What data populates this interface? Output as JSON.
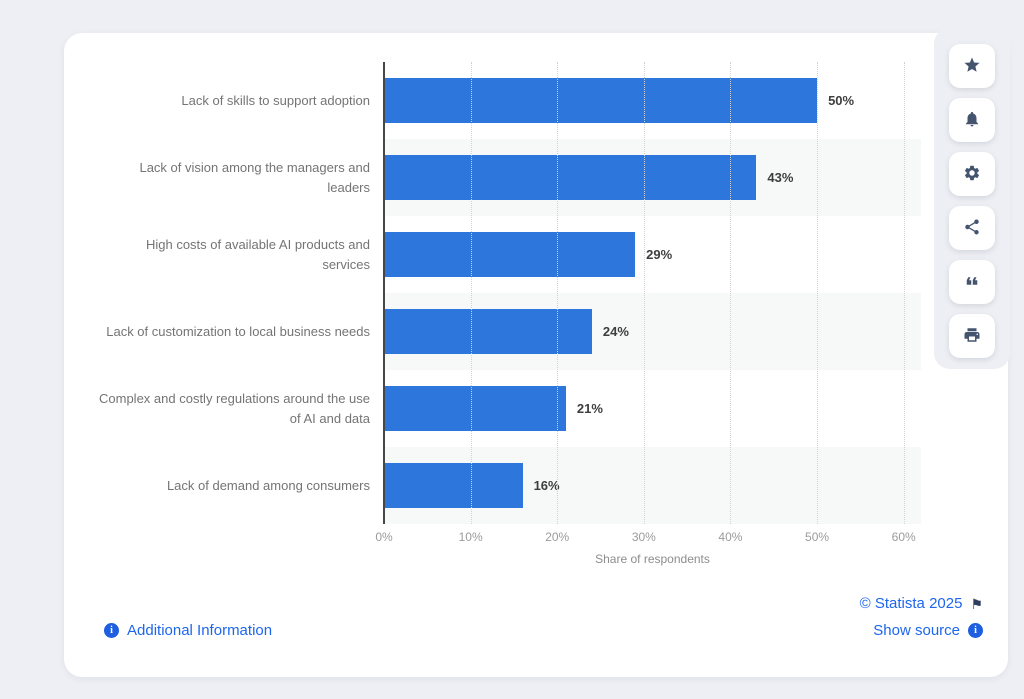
{
  "chart_data": {
    "type": "bar",
    "orientation": "horizontal",
    "categories": [
      "Lack of skills to support adoption",
      "Lack of vision among the managers and leaders",
      "High costs of available AI products and services",
      "Lack of customization to local business needs",
      "Complex and costly regulations around the use of AI and data",
      "Lack of demand among consumers"
    ],
    "values": [
      50,
      43,
      29,
      24,
      21,
      16
    ],
    "value_labels": [
      "50%",
      "43%",
      "29%",
      "24%",
      "21%",
      "16%"
    ],
    "xlabel": "Share of respondents",
    "x_ticks": [
      "0%",
      "10%",
      "20%",
      "30%",
      "40%",
      "50%",
      "60%"
    ],
    "x_tick_values": [
      0,
      10,
      20,
      30,
      40,
      50,
      60
    ],
    "xlim": [
      0,
      62
    ],
    "bar_color": "#2d77dc",
    "grid": "vertical-dotted",
    "row_stripe_color": "#f7f8f8",
    "legend": "none"
  },
  "toolbar": {
    "buttons": [
      {
        "name": "favorite",
        "icon": "star-icon"
      },
      {
        "name": "notifications",
        "icon": "bell-icon"
      },
      {
        "name": "settings",
        "icon": "gear-icon"
      },
      {
        "name": "share",
        "icon": "share-icon"
      },
      {
        "name": "cite",
        "icon": "quote-icon"
      },
      {
        "name": "print",
        "icon": "printer-icon"
      }
    ]
  },
  "footer": {
    "additional_information": "Additional Information",
    "copyright": "© Statista 2025",
    "show_source": "Show source"
  },
  "colors": {
    "bar": "#2d77dc",
    "link": "#1d66ee",
    "toolbar_icon": "#44546f",
    "flag": "#2e3e5c",
    "page_background": "#edeff4"
  }
}
